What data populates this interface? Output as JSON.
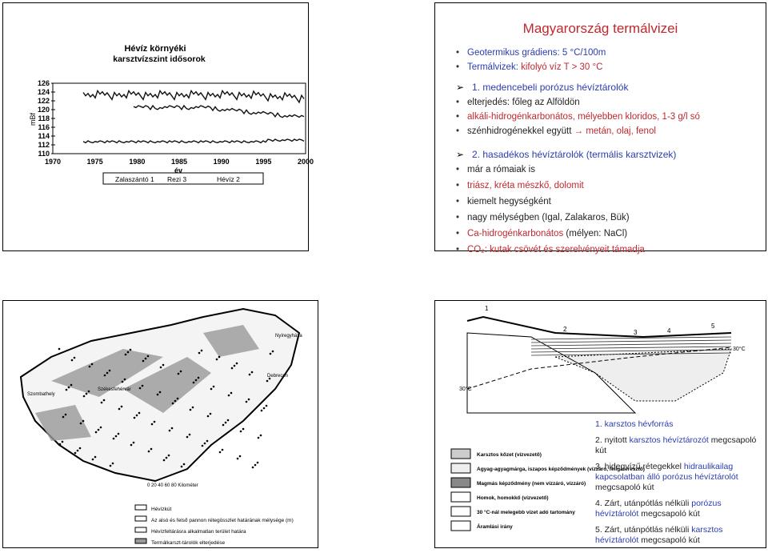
{
  "chart_panel": {
    "title": "Hévíz környéki",
    "subtitle": "karsztvízszint idősorok",
    "y_label": "mBf",
    "x_label": "év",
    "yticks": [
      "126",
      "124",
      "122",
      "120",
      "118",
      "116",
      "114",
      "112",
      "110"
    ],
    "xticks": [
      "1970",
      "1975",
      "1980",
      "1985",
      "1990",
      "1995",
      "2000"
    ],
    "legend": [
      "Zalaszántó 1",
      "Rezi 3",
      "Hévíz 2"
    ]
  },
  "text_slide": {
    "title": "Magyarország termálvizei",
    "intro": [
      [
        {
          "text": "Geotermikus grádiens: 5 °C/100m",
          "color": "#2a3cb0"
        }
      ],
      [
        {
          "text": "Termálvizek:",
          "color": "#2a3cb0"
        },
        {
          "text": "kifolyó víz T > 30 °C",
          "color": "#c0282d"
        }
      ]
    ],
    "sections": [
      {
        "heading": "1. medencebeli porózus hévíztárolók",
        "items": [
          [
            {
              "text": "elterjedés: főleg az Alföldön",
              "color": "#222222"
            }
          ],
          [
            {
              "text": "alkáli-hidrogénkarbonátos, mélyebben kloridos, 1-3 g/l só",
              "color": "#c0282d"
            }
          ],
          [
            {
              "text": "szénhidrogénekkel együtt",
              "color": "#222222"
            },
            {
              "text": "→ metán, olaj, fenol",
              "color": "#c0282d"
            }
          ]
        ]
      },
      {
        "heading": "2. hasadékos hévíztárolók (termális karsztvizek)",
        "items": [
          [
            {
              "text": "már a rómaiak is",
              "color": "#222222"
            }
          ],
          [
            {
              "text": "triász, kréta mészkő, dolomit",
              "color": "#c0282d"
            }
          ],
          [
            {
              "text": "kiemelt hegységként",
              "color": "#222222"
            }
          ],
          [
            {
              "text": "nagy mélységben (Igal, Zalakaros, Bük)",
              "color": "#222222"
            }
          ],
          [
            {
              "text": "Ca-hidrogénkarbonátos",
              "color": "#c0282d"
            },
            {
              "text": "(mélyen: NaCl)",
              "color": "#222222"
            }
          ],
          [
            {
              "text": "CO₂: kutak csövét és szerelvényeit támadja",
              "color": "#c0282d"
            }
          ]
        ]
      }
    ]
  },
  "map_panel": {
    "places": [
      "Szombathely",
      "Székesfehérvár",
      "Debrecen",
      "Nyíregyháza"
    ],
    "scale": "0 20 40 60 80 Kilométer",
    "legend": [
      "Hévízkút",
      "Az alsó és felső pannon rétegösszlet határának mélysége (m)",
      "Hévízfeltárásra alkalmatlan terület határa",
      "Termálkarszt-tárolók elterjedése"
    ]
  },
  "section_panel": {
    "numbers": [
      "1",
      "2",
      "3",
      "4",
      "5"
    ],
    "temperature": "30°C",
    "legend": [
      "Karsztos kőzet (vízvezető)",
      "Agyag-agyagmárga, iszapos képződmények (vízzáró, féligáteresztő)",
      "Magmás képződmény (nem vízzáró, vízzáró)",
      "Homok, homokkő (vízvezető)",
      "30 °C-nál melegebb vizet adó tartomány",
      "Áramlási irány"
    ],
    "list": [
      [
        {
          "text": "1. karsztos hévforrás",
          "color": "#2a3cb0"
        }
      ],
      [
        {
          "text": "2. nyitott",
          "color": "#222222"
        },
        {
          "text": "karsztos hévíztározót",
          "color": "#2a3cb0"
        },
        {
          "text": "megcsapoló kút",
          "color": "#222222"
        }
      ],
      [
        {
          "text": "3. hidegvízű rétegekkel",
          "color": "#222222"
        },
        {
          "text": "hidraulikailag kapcsolatban álló porózus hévíztárolót",
          "color": "#2a3cb0"
        },
        {
          "text": "megcsapoló kút",
          "color": "#222222"
        }
      ],
      [
        {
          "text": "4. Zárt, utánpótlás nélküli",
          "color": "#222222"
        },
        {
          "text": "porózus hévíztárolót",
          "color": "#2a3cb0"
        },
        {
          "text": "megcsapoló kút",
          "color": "#222222"
        }
      ],
      [
        {
          "text": "5. Zárt, utánpótlás nélküli",
          "color": "#222222"
        },
        {
          "text": "karsztos hévíztárolót",
          "color": "#2a3cb0"
        },
        {
          "text": "megcsapoló kút",
          "color": "#222222"
        }
      ]
    ]
  }
}
